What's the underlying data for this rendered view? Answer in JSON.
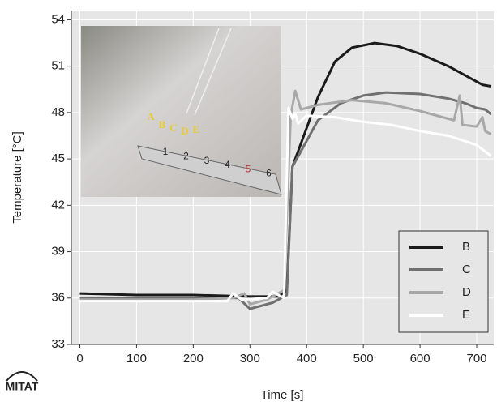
{
  "chart_data": {
    "type": "line",
    "x_label": "Time [s]",
    "y_label": "Temperature [°C]",
    "xlim": [
      -15,
      730
    ],
    "ylim": [
      33,
      54.6
    ],
    "xticks": [
      0,
      100,
      200,
      300,
      400,
      500,
      600,
      700
    ],
    "yticks": [
      33,
      36,
      39,
      42,
      45,
      48,
      51,
      54
    ],
    "grid": true,
    "legend": "lower right",
    "series": [
      {
        "name": "B",
        "color": "#1a1a1a",
        "x": [
          0,
          100,
          200,
          300,
          350,
          365,
          375,
          385,
          400,
          420,
          450,
          480,
          520,
          560,
          600,
          650,
          690,
          710,
          725
        ],
        "values": [
          36.3,
          36.2,
          36.2,
          36.1,
          36.1,
          36.5,
          44.5,
          45.5,
          47.0,
          49.0,
          51.3,
          52.2,
          52.5,
          52.3,
          51.8,
          51.0,
          50.2,
          49.8,
          49.7
        ]
      },
      {
        "name": "C",
        "color": "#707070",
        "x": [
          0,
          200,
          280,
          300,
          320,
          340,
          365,
          375,
          390,
          420,
          460,
          500,
          540,
          600,
          650,
          670,
          680,
          700,
          715,
          725
        ],
        "values": [
          36.0,
          36.0,
          36.0,
          35.3,
          35.5,
          35.7,
          36.2,
          44.5,
          45.5,
          47.5,
          48.6,
          49.1,
          49.3,
          49.2,
          48.9,
          48.7,
          48.6,
          48.3,
          48.2,
          47.9
        ]
      },
      {
        "name": "D",
        "color": "#a8a8a8",
        "x": [
          0,
          200,
          270,
          290,
          300,
          330,
          360,
          372,
          380,
          390,
          420,
          480,
          540,
          600,
          660,
          670,
          675,
          700,
          710,
          715,
          725
        ],
        "values": [
          35.9,
          35.9,
          36.0,
          36.3,
          35.6,
          35.9,
          36.5,
          47.8,
          49.4,
          48.2,
          48.5,
          48.8,
          48.6,
          48.1,
          47.5,
          49.1,
          47.2,
          47.1,
          47.7,
          46.8,
          46.6
        ]
      },
      {
        "name": "E",
        "color": "#ffffff",
        "x": [
          0,
          200,
          260,
          270,
          285,
          330,
          340,
          360,
          368,
          375,
          380,
          385,
          400,
          450,
          500,
          550,
          600,
          650,
          700,
          725
        ],
        "values": [
          35.8,
          35.8,
          35.8,
          36.3,
          35.9,
          36.0,
          36.4,
          36.0,
          48.3,
          47.6,
          47.9,
          47.3,
          47.8,
          47.7,
          47.4,
          47.2,
          46.8,
          46.5,
          45.9,
          45.2
        ]
      }
    ]
  },
  "inset": {
    "probe_labels": [
      "A",
      "B",
      "C",
      "D",
      "E"
    ],
    "ruler_labels": [
      "1",
      "2",
      "3",
      "4",
      "5",
      "6"
    ]
  },
  "logo": "MITAT"
}
